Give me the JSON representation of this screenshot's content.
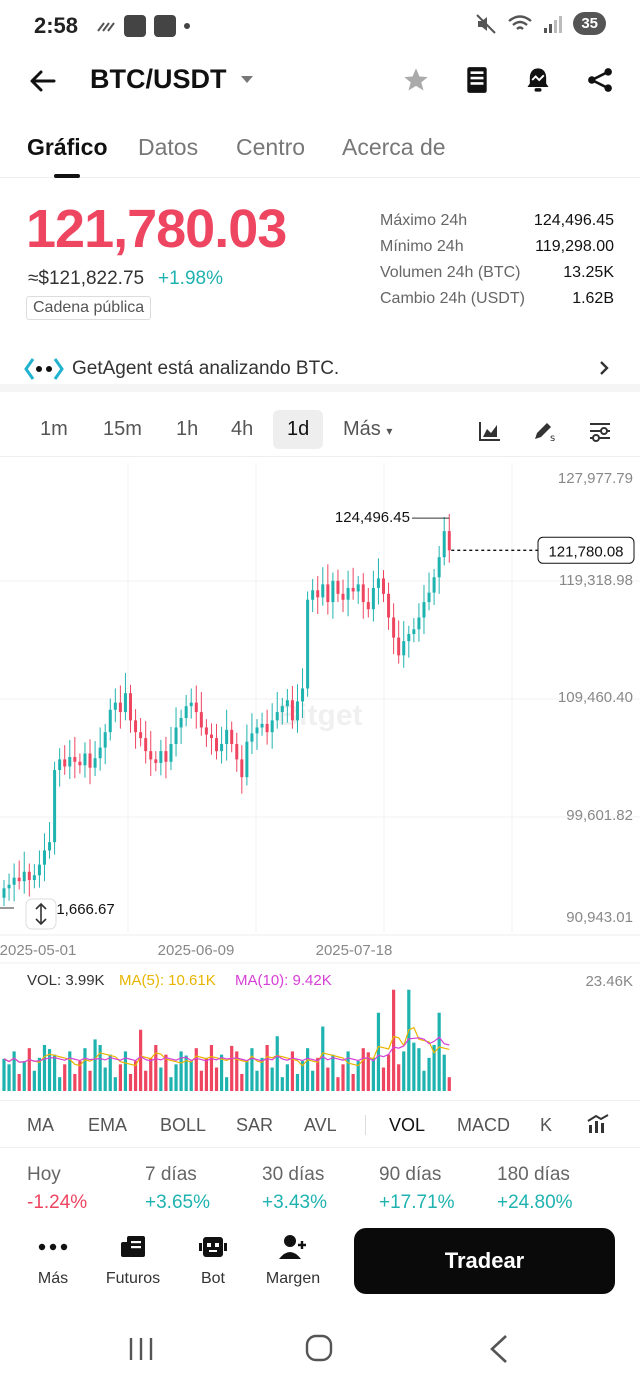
{
  "status": {
    "time": "2:58",
    "battery": "35"
  },
  "header": {
    "pair": "BTC/USDT"
  },
  "tabs": [
    "Gráfico",
    "Datos",
    "Centro",
    "Acerca de"
  ],
  "ticker": {
    "price": "121,780.03",
    "usd": "≈$121,822.75",
    "change_pct": "+1.98%",
    "chain_badge": "Cadena pública"
  },
  "stats": [
    {
      "k": "Máximo 24h",
      "v": "124,496.45"
    },
    {
      "k": "Mínimo 24h",
      "v": "119,298.00"
    },
    {
      "k": "Volumen 24h (BTC)",
      "v": "13.25K"
    },
    {
      "k": "Cambio 24h (USDT)",
      "v": "1.62B"
    }
  ],
  "agent": {
    "text": "GetAgent está analizando BTC."
  },
  "timeframes": [
    "1m",
    "15m",
    "1h",
    "4h",
    "1d",
    "Más"
  ],
  "active_timeframe": "1d",
  "chart_data": {
    "type": "candlestick",
    "price_axis": [
      "127,977.79",
      "119,318.98",
      "109,460.40",
      "99,601.82",
      "90,943.01"
    ],
    "date_axis": [
      "2025-05-01",
      "2025-06-09",
      "2025-07-18"
    ],
    "high_label": "124,496.45",
    "low_label": "91,666.67",
    "last_price_tag": "121,780.08",
    "watermark": "Bitget",
    "volume": {
      "vol_label": "VOL: 3.99K",
      "ma5_label": "MA(5): 10.61K",
      "ma10_label": "MA(10): 9.42K",
      "max_label": "23.46K"
    },
    "colors": {
      "up": "#1fb3b0",
      "down": "#ee4560",
      "ma5": "#e8b400",
      "ma10": "#d63fd6"
    }
  },
  "indicators": [
    "MA",
    "EMA",
    "BOLL",
    "SAR",
    "AVL",
    "VOL",
    "MACD",
    "K"
  ],
  "active_indicator": "VOL",
  "performance": [
    {
      "label": "Hoy",
      "value": "-1.24%",
      "color": "#ee4560"
    },
    {
      "label": "7 días",
      "value": "+3.65%",
      "color": "#1fb3b0"
    },
    {
      "label": "30 días",
      "value": "+3.43%",
      "color": "#1fb3b0"
    },
    {
      "label": "90 días",
      "value": "+17.71%",
      "color": "#1fb3b0"
    },
    {
      "label": "180 días",
      "value": "+24.80%",
      "color": "#1fb3b0"
    }
  ],
  "bottom_nav": [
    "Más",
    "Futuros",
    "Bot",
    "Margen"
  ],
  "trade_button": "Tradear"
}
